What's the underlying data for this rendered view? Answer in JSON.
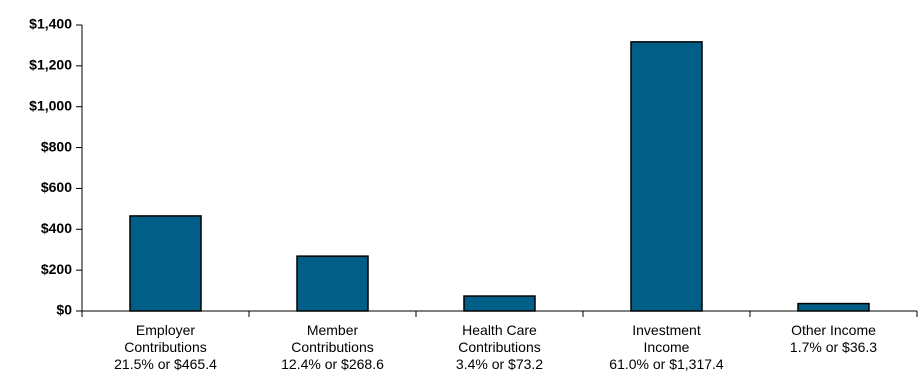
{
  "chart_data": {
    "type": "bar",
    "categories": [
      [
        "Employer",
        "Contributions",
        "21.5% or $465.4"
      ],
      [
        "Member",
        "Contributions",
        "12.4% or $268.6"
      ],
      [
        "Health Care",
        "Contributions",
        "3.4% or $73.2"
      ],
      [
        "Investment",
        "Income",
        "61.0% or $1,317.4"
      ],
      [
        "Other Income",
        "1.7% or $36.3"
      ]
    ],
    "values": [
      465.4,
      268.6,
      73.2,
      1317.4,
      36.3
    ],
    "ylim": [
      0,
      1400
    ],
    "yticks": [
      0,
      200,
      400,
      600,
      800,
      1000,
      1200,
      1400
    ],
    "ytick_labels": [
      "$0",
      "$200",
      "$400",
      "$600",
      "$800",
      "$1,000",
      "$1,200",
      "$1,400"
    ],
    "title": "",
    "xlabel": "",
    "ylabel": "",
    "grid": false,
    "legend": "none",
    "bar_color": "#005e87",
    "bar_edge_color": "#000000"
  }
}
